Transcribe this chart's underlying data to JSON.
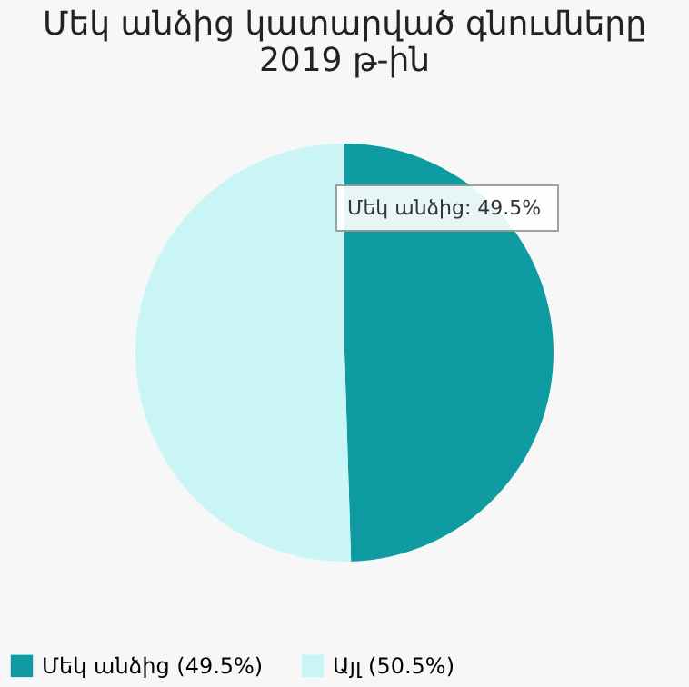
{
  "chart_data": {
    "type": "pie",
    "title": "Մեկ անձից կատարված գնումները 2019 թ-ին",
    "categories": [
      "Մեկ անձից (49.5%)",
      "Այլ (50.5%)"
    ],
    "values": [
      49.5,
      50.5
    ],
    "colors": [
      "#0e9ba2",
      "#c9f5f7"
    ],
    "legend": "bottom",
    "annotations": [
      "Մեկ անձից: 49.5%"
    ]
  }
}
